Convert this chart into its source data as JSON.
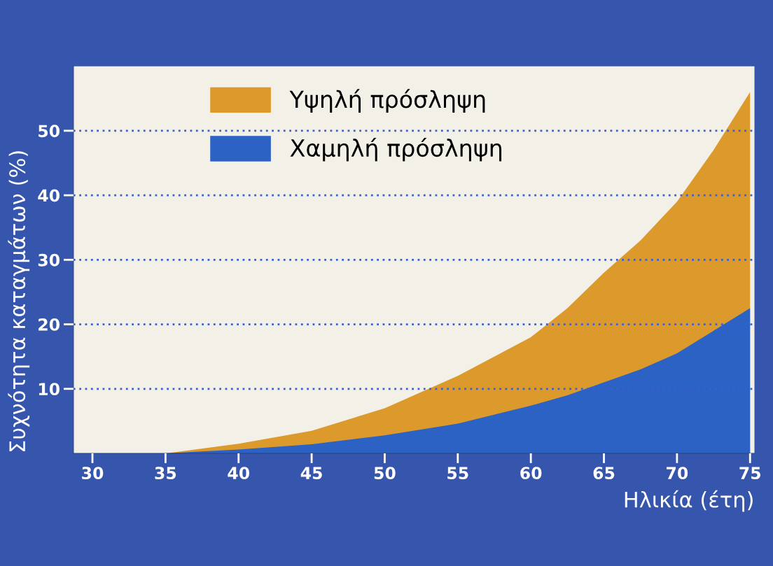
{
  "chart_data": {
    "type": "area",
    "xlabel": "Ηλικία (έτη)",
    "ylabel": "Συχνότητα καταγμάτων (%)",
    "x": [
      35,
      40,
      45,
      50,
      55,
      60,
      62.5,
      65,
      67.5,
      70,
      72.5,
      75
    ],
    "series": [
      {
        "name": "Υψηλή πρόσληψη",
        "color": "#dc9a2c",
        "values": [
          0,
          1.5,
          3.5,
          7,
          12,
          18,
          22.5,
          28,
          33,
          39,
          47,
          56
        ]
      },
      {
        "name": "Χαμηλή πρόσληψη",
        "color": "#2c62c4",
        "values": [
          0,
          0.6,
          1.4,
          2.8,
          4.6,
          7.4,
          9,
          11,
          13,
          15.5,
          19,
          22.5
        ]
      }
    ],
    "xlim": [
      28.7,
      75.3
    ],
    "ylim": [
      0,
      60
    ],
    "xticks": [
      30,
      35,
      40,
      45,
      50,
      55,
      60,
      65,
      70,
      75
    ],
    "yticks": [
      10,
      20,
      30,
      40,
      50
    ],
    "grid": "y",
    "legend": "top left"
  }
}
